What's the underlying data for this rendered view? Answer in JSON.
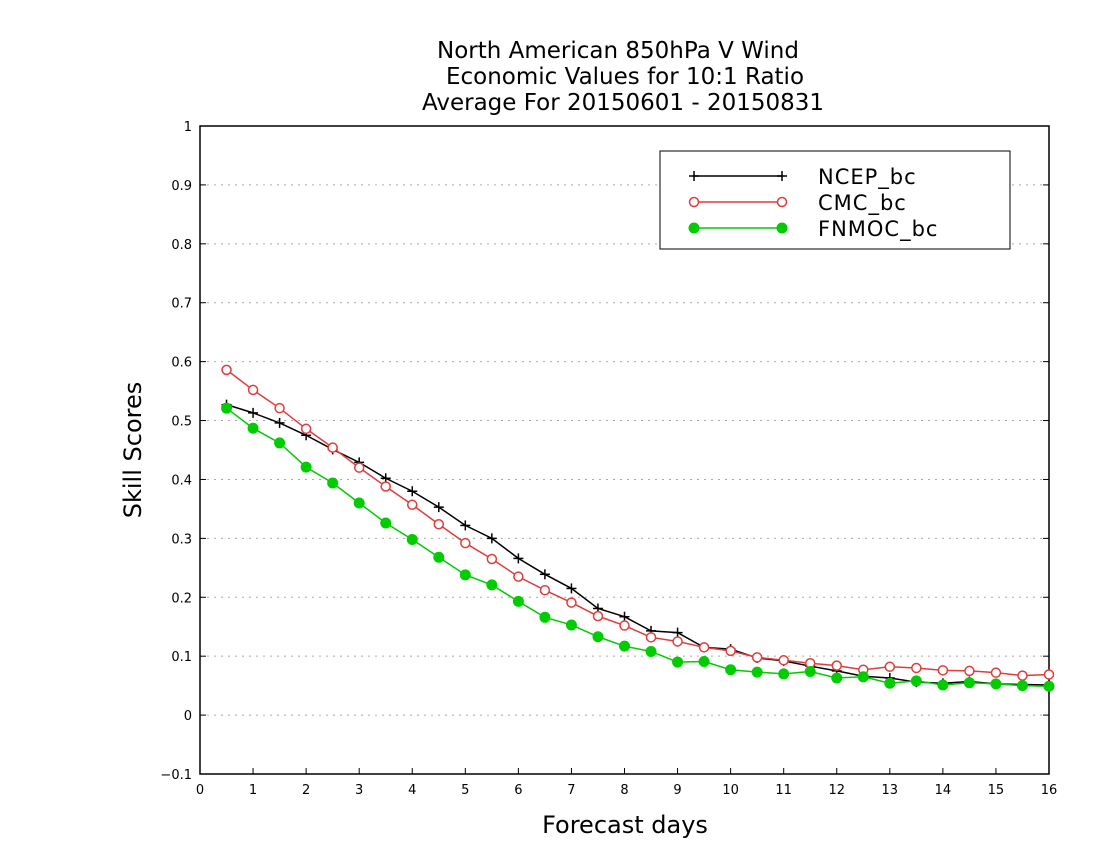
{
  "chart_data": {
    "type": "line",
    "title": [
      "North American 850hPa V Wind",
      "Economic Values for 10:1 Ratio",
      "Average For 20150601 - 20150831"
    ],
    "xlabel": "Forecast days",
    "ylabel": "Skill Scores",
    "xlim": [
      0,
      16
    ],
    "ylim": [
      -0.1,
      1
    ],
    "xticks": [
      "0",
      "1",
      "2",
      "3",
      "4",
      "5",
      "6",
      "7",
      "8",
      "9",
      "10",
      "11",
      "12",
      "13",
      "14",
      "15",
      "16"
    ],
    "yticks": [
      "−0.1",
      "0",
      "0.1",
      "0.2",
      "0.3",
      "0.4",
      "0.5",
      "0.6",
      "0.7",
      "0.8",
      "0.9",
      "1"
    ],
    "grid": "horizontal dotted",
    "legend_position": "top-right",
    "x": [
      0.5,
      1,
      1.5,
      2,
      2.5,
      3,
      3.5,
      4,
      4.5,
      5,
      5.5,
      6,
      6.5,
      7,
      7.5,
      8,
      8.5,
      9,
      9.5,
      10,
      10.5,
      11,
      11.5,
      12,
      12.5,
      13,
      13.5,
      14,
      14.5,
      15,
      15.5,
      16
    ],
    "series": [
      {
        "name": "NCEP_bc",
        "color": "#000000",
        "marker": "plus",
        "values": [
          0.527,
          0.513,
          0.496,
          0.475,
          0.451,
          0.429,
          0.402,
          0.38,
          0.353,
          0.322,
          0.3,
          0.266,
          0.239,
          0.215,
          0.181,
          0.167,
          0.143,
          0.14,
          0.115,
          0.112,
          0.097,
          0.092,
          0.083,
          0.075,
          0.066,
          0.063,
          0.056,
          0.054,
          0.057,
          0.053,
          0.052,
          0.051
        ]
      },
      {
        "name": "CMC_bc",
        "color": "#e03c3c",
        "marker": "open-circle",
        "values": [
          0.586,
          0.552,
          0.521,
          0.486,
          0.454,
          0.42,
          0.388,
          0.357,
          0.324,
          0.292,
          0.265,
          0.235,
          0.212,
          0.191,
          0.168,
          0.152,
          0.132,
          0.125,
          0.115,
          0.109,
          0.098,
          0.093,
          0.088,
          0.084,
          0.077,
          0.082,
          0.08,
          0.076,
          0.075,
          0.072,
          0.067,
          0.069
        ]
      },
      {
        "name": "FNMOC_bc",
        "color": "#00cc00",
        "marker": "filled-circle",
        "values": [
          0.521,
          0.487,
          0.462,
          0.421,
          0.394,
          0.36,
          0.326,
          0.298,
          0.268,
          0.238,
          0.221,
          0.193,
          0.166,
          0.153,
          0.133,
          0.117,
          0.108,
          0.09,
          0.091,
          0.077,
          0.073,
          0.07,
          0.074,
          0.063,
          0.065,
          0.054,
          0.058,
          0.051,
          0.055,
          0.053,
          0.05,
          0.049
        ]
      }
    ]
  }
}
